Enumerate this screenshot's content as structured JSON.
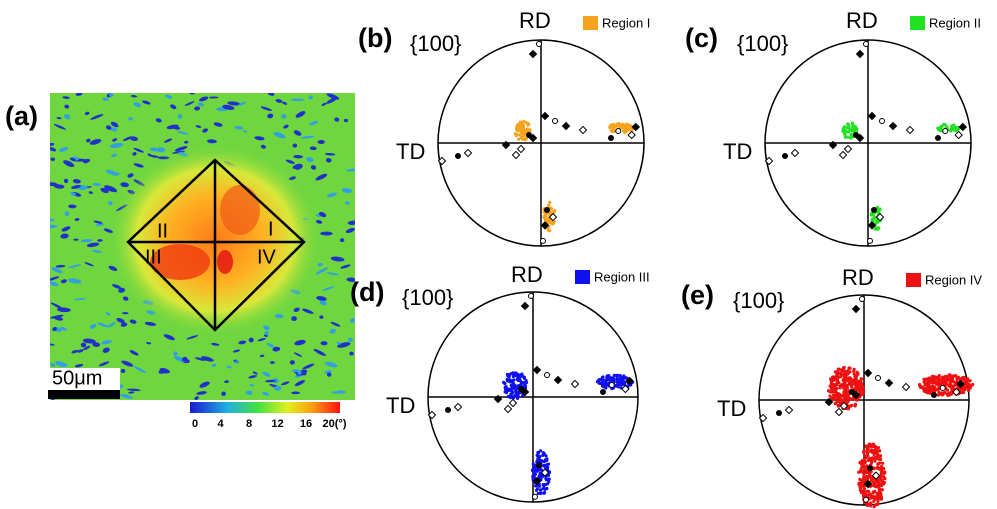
{
  "panel_a": {
    "label": "(a)",
    "regions": [
      "I",
      "II",
      "III",
      "IV"
    ],
    "scale_bar": "50μm",
    "colorbar_ticks": [
      "0",
      "4",
      "8",
      "12",
      "16",
      "20(°)"
    ]
  },
  "pole_figures": [
    {
      "label": "(b)",
      "plane": "{100}",
      "rd": "RD",
      "td": "TD",
      "region": "Region I",
      "color": "#f5a31e"
    },
    {
      "label": "(c)",
      "plane": "{100}",
      "rd": "RD",
      "td": "TD",
      "region": "Region II",
      "color": "#22e022"
    },
    {
      "label": "(d)",
      "plane": "{100}",
      "rd": "RD",
      "td": "TD",
      "region": "Region III",
      "color": "#1010ee"
    },
    {
      "label": "(e)",
      "plane": "{100}",
      "rd": "RD",
      "td": "TD",
      "region": "Region IV",
      "color": "#ee1111"
    }
  ]
}
